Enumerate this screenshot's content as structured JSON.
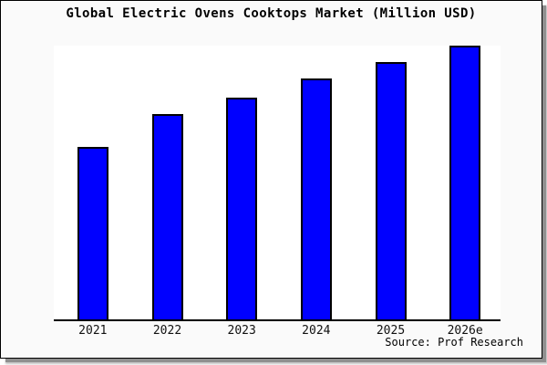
{
  "window": {
    "background": "#fafafa",
    "border_color": "#000000",
    "shadow_color": "#8f8f8f"
  },
  "chart_data": {
    "type": "bar",
    "title": "Global Electric Ovens Cooktops Market (Million USD)",
    "categories": [
      "2021",
      "2022",
      "2023",
      "2024",
      "2025",
      "2026e"
    ],
    "values": [
      63,
      75,
      81,
      88,
      94,
      100
    ],
    "value_note": "no y-axis or data labels shown; values estimated relative to tallest bar (2026e = 100)",
    "ylim": [
      0,
      100
    ],
    "xlabel": "",
    "ylabel": "",
    "grid": false,
    "legend": false,
    "bar_color": "#0000ff",
    "bar_border_color": "#000000",
    "axis_line_color": "#000000",
    "plot_background": "#ffffff",
    "source": "Source: Prof Research"
  }
}
